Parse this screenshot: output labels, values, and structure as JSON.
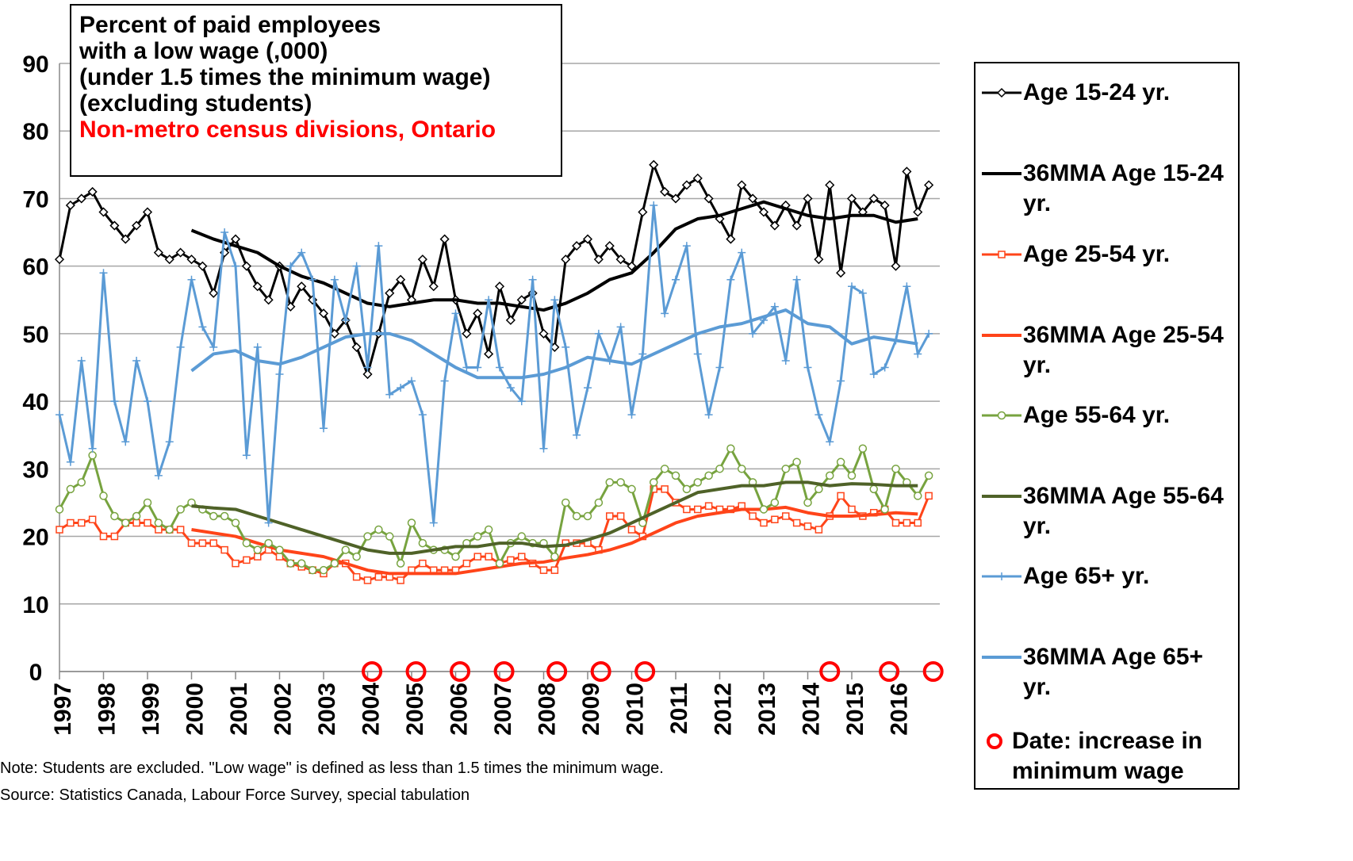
{
  "chart_data": {
    "type": "line",
    "title_lines": [
      "Percent of paid employees",
      "with a low wage (,000)",
      "(under 1.5 times the minimum wage)",
      "(excluding students)"
    ],
    "subtitle": "Non-metro census divisions, Ontario",
    "notes": [
      "Note: Students are excluded. \"Low wage\" is defined as less than 1.5 times the minimum wage.",
      "Source: Statistics Canada, Labour Force Survey, special tabulation"
    ],
    "xlim": [
      1997,
      2017
    ],
    "xticks": [
      1997,
      1998,
      1999,
      2000,
      2001,
      2002,
      2003,
      2004,
      2005,
      2006,
      2007,
      2008,
      2009,
      2010,
      2011,
      2012,
      2013,
      2014,
      2015,
      2016
    ],
    "ylim": [
      0,
      90
    ],
    "yticks": [
      0,
      10,
      20,
      30,
      40,
      50,
      60,
      70,
      80,
      90
    ],
    "grid": true,
    "legend": "right",
    "x": [
      1997,
      1997.25,
      1997.5,
      1997.75,
      1998,
      1998.25,
      1998.5,
      1998.75,
      1999,
      1999.25,
      1999.5,
      1999.75,
      2000,
      2000.25,
      2000.5,
      2000.75,
      2001,
      2001.25,
      2001.5,
      2001.75,
      2002,
      2002.25,
      2002.5,
      2002.75,
      2003,
      2003.25,
      2003.5,
      2003.75,
      2004,
      2004.25,
      2004.5,
      2004.75,
      2005,
      2005.25,
      2005.5,
      2005.75,
      2006,
      2006.25,
      2006.5,
      2006.75,
      2007,
      2007.25,
      2007.5,
      2007.75,
      2008,
      2008.25,
      2008.5,
      2008.75,
      2009,
      2009.25,
      2009.5,
      2009.75,
      2010,
      2010.25,
      2010.5,
      2010.75,
      2011,
      2011.25,
      2011.5,
      2011.75,
      2012,
      2012.25,
      2012.5,
      2012.75,
      2013,
      2013.25,
      2013.5,
      2013.75,
      2014,
      2014.25,
      2014.5,
      2014.75,
      2015,
      2015.25,
      2015.5,
      2015.75,
      2016,
      2016.25,
      2016.5,
      2016.75
    ],
    "series": [
      {
        "name": "Age 15-24 yr.",
        "color": "#000000",
        "marker": "diamond",
        "values": [
          61,
          69,
          70,
          71,
          68,
          66,
          64,
          66,
          68,
          62,
          61,
          62,
          61,
          60,
          56,
          62,
          64,
          60,
          57,
          55,
          60,
          54,
          57,
          55,
          53,
          50,
          52,
          48,
          44,
          50,
          56,
          58,
          55,
          61,
          57,
          64,
          55,
          50,
          53,
          47,
          57,
          52,
          55,
          56,
          50,
          48,
          61,
          63,
          64,
          61,
          63,
          61,
          60,
          68,
          75,
          71,
          70,
          72,
          73,
          70,
          67,
          64,
          72,
          70,
          68,
          66,
          69,
          66,
          70,
          61,
          72,
          59,
          70,
          68,
          70,
          69,
          60,
          74,
          68,
          72
        ]
      },
      {
        "name": "36MMA Age 15-24 yr.",
        "color": "#000000",
        "marker": "none",
        "x": [
          2000,
          2000.5,
          2001,
          2001.5,
          2002,
          2002.5,
          2003,
          2003.5,
          2004,
          2004.5,
          2005,
          2005.5,
          2006,
          2006.5,
          2007,
          2007.5,
          2008,
          2008.5,
          2009,
          2009.5,
          2010,
          2010.5,
          2011,
          2011.5,
          2012,
          2012.5,
          2013,
          2013.5,
          2014,
          2014.5,
          2015,
          2015.5,
          2016,
          2016.5
        ],
        "values": [
          65.3,
          64,
          63,
          62,
          60,
          58.5,
          57.5,
          56,
          54.5,
          54,
          54.5,
          55,
          55,
          54.5,
          54.5,
          54,
          53.5,
          54.5,
          56,
          58,
          59,
          62,
          65.5,
          67,
          67.5,
          68.5,
          69.5,
          68.5,
          67.5,
          67,
          67.5,
          67.5,
          66.5,
          67
        ]
      },
      {
        "name": "Age 25-54 yr.",
        "color": "#ff4419",
        "marker": "square",
        "values": [
          21,
          22,
          22,
          22.5,
          20,
          20,
          22,
          22,
          22,
          21,
          21,
          21,
          19,
          19,
          19,
          18,
          16,
          16.5,
          17,
          18,
          17,
          16,
          15.5,
          15,
          14.5,
          16,
          16,
          14,
          13.5,
          14,
          14,
          13.5,
          15,
          16,
          15,
          15,
          15,
          16,
          17,
          17,
          16,
          16.5,
          17,
          16,
          15,
          15,
          19,
          19,
          19,
          18,
          23,
          23,
          21,
          20,
          27,
          27,
          25,
          24,
          24,
          24.5,
          24,
          24,
          24.5,
          23,
          22,
          22.5,
          23,
          22,
          21.5,
          21,
          23,
          26,
          24,
          23,
          23.5,
          24,
          22,
          22,
          22,
          26
        ]
      },
      {
        "name": "36MMA Age 25-54 yr.",
        "color": "#ff4419",
        "marker": "none",
        "x": [
          2000,
          2000.5,
          2001,
          2001.5,
          2002,
          2002.5,
          2003,
          2003.5,
          2004,
          2004.5,
          2005,
          2005.5,
          2006,
          2006.5,
          2007,
          2007.5,
          2008,
          2008.5,
          2009,
          2009.5,
          2010,
          2010.5,
          2011,
          2011.5,
          2012,
          2012.5,
          2013,
          2013.5,
          2014,
          2014.5,
          2015,
          2015.5,
          2016,
          2016.5
        ],
        "values": [
          21,
          20.5,
          20,
          19,
          18,
          17.5,
          17,
          16,
          15,
          14.5,
          14.5,
          14.5,
          14.5,
          15,
          15.5,
          16,
          16.2,
          16.8,
          17.3,
          18,
          19,
          20.5,
          22,
          23,
          23.5,
          24,
          24,
          24.3,
          23.5,
          23,
          23,
          23.2,
          23.5,
          23.3
        ]
      },
      {
        "name": "Age 55-64 yr.",
        "color": "#77a33f",
        "marker": "circle",
        "values": [
          24,
          27,
          28,
          32,
          26,
          23,
          22,
          23,
          25,
          22,
          21,
          24,
          25,
          24,
          23,
          23,
          22,
          19,
          18,
          19,
          18,
          16,
          16,
          15,
          15,
          16,
          18,
          17,
          20,
          21,
          20,
          16,
          22,
          19,
          18,
          18,
          17,
          19,
          20,
          21,
          16,
          19,
          20,
          19,
          19,
          17,
          25,
          23,
          23,
          25,
          28,
          28,
          27,
          22,
          28,
          30,
          29,
          27,
          28,
          29,
          30,
          33,
          30,
          28,
          24,
          25,
          30,
          31,
          25,
          27,
          29,
          31,
          29,
          33,
          27,
          24,
          30,
          28,
          26,
          29
        ]
      },
      {
        "name": "36MMA Age 55-64 yr.",
        "color": "#4f6228",
        "marker": "none",
        "x": [
          2000,
          2000.5,
          2001,
          2001.5,
          2002,
          2002.5,
          2003,
          2003.5,
          2004,
          2004.5,
          2005,
          2005.5,
          2006,
          2006.5,
          2007,
          2007.5,
          2008,
          2008.5,
          2009,
          2009.5,
          2010,
          2010.5,
          2011,
          2011.5,
          2012,
          2012.5,
          2013,
          2013.5,
          2014,
          2014.5,
          2015,
          2015.5,
          2016,
          2016.5
        ],
        "values": [
          24.5,
          24.2,
          24,
          23,
          22,
          21,
          20,
          19,
          18,
          17.5,
          17.5,
          18,
          18.5,
          18.5,
          19,
          19,
          18.5,
          18.7,
          19.5,
          20.5,
          22,
          23.5,
          25,
          26.5,
          27,
          27.5,
          27.5,
          28,
          28,
          27.5,
          27.8,
          27.7,
          27.5,
          27.5
        ]
      },
      {
        "name": "Age 65+ yr.",
        "color": "#5b9bd5",
        "marker": "plus",
        "values": [
          38,
          31,
          46,
          33,
          59,
          40,
          34,
          46,
          40,
          29,
          34,
          48,
          58,
          51,
          48,
          65,
          60,
          32,
          48,
          22,
          44,
          60,
          62,
          58,
          36,
          58,
          52,
          60,
          45,
          63,
          41,
          42,
          43,
          38,
          22,
          43,
          53,
          45,
          45,
          55,
          45,
          42,
          40,
          58,
          33,
          55,
          48,
          35,
          42,
          50,
          46,
          51,
          38,
          47,
          69,
          53,
          58,
          63,
          47,
          38,
          45,
          58,
          62,
          50,
          52,
          54,
          46,
          58,
          45,
          38,
          34,
          43,
          57,
          56,
          44,
          45,
          49,
          57,
          47,
          50
        ]
      },
      {
        "name": "36MMA Age 65+ yr.",
        "color": "#5b9bd5",
        "marker": "none",
        "x": [
          2000,
          2000.5,
          2001,
          2001.5,
          2002,
          2002.5,
          2003,
          2003.5,
          2004,
          2004.5,
          2005,
          2005.5,
          2006,
          2006.5,
          2007,
          2007.5,
          2008,
          2008.5,
          2009,
          2009.5,
          2010,
          2010.5,
          2011,
          2011.5,
          2012,
          2012.5,
          2013,
          2013.5,
          2014,
          2014.5,
          2015,
          2015.5,
          2016,
          2016.5
        ],
        "values": [
          44.5,
          47,
          47.5,
          46,
          45.5,
          46.5,
          48,
          49.5,
          50,
          50,
          49,
          47,
          45,
          43.5,
          43.5,
          43.5,
          44,
          45,
          46.5,
          46,
          45.5,
          47,
          48.5,
          50,
          51,
          51.5,
          52.5,
          53.5,
          51.5,
          51,
          48.5,
          49.5,
          49,
          48.5
        ]
      },
      {
        "name": "Date: increase in minimum wage",
        "color": "#ff0000",
        "marker": "ring",
        "x": [
          2004.1,
          2005.1,
          2006.1,
          2007.1,
          2008.3,
          2009.3,
          2010.3,
          2014.5,
          2015.85,
          2016.85
        ],
        "values": [
          0,
          0,
          0,
          0,
          0,
          0,
          0,
          0,
          0,
          0
        ]
      }
    ]
  }
}
